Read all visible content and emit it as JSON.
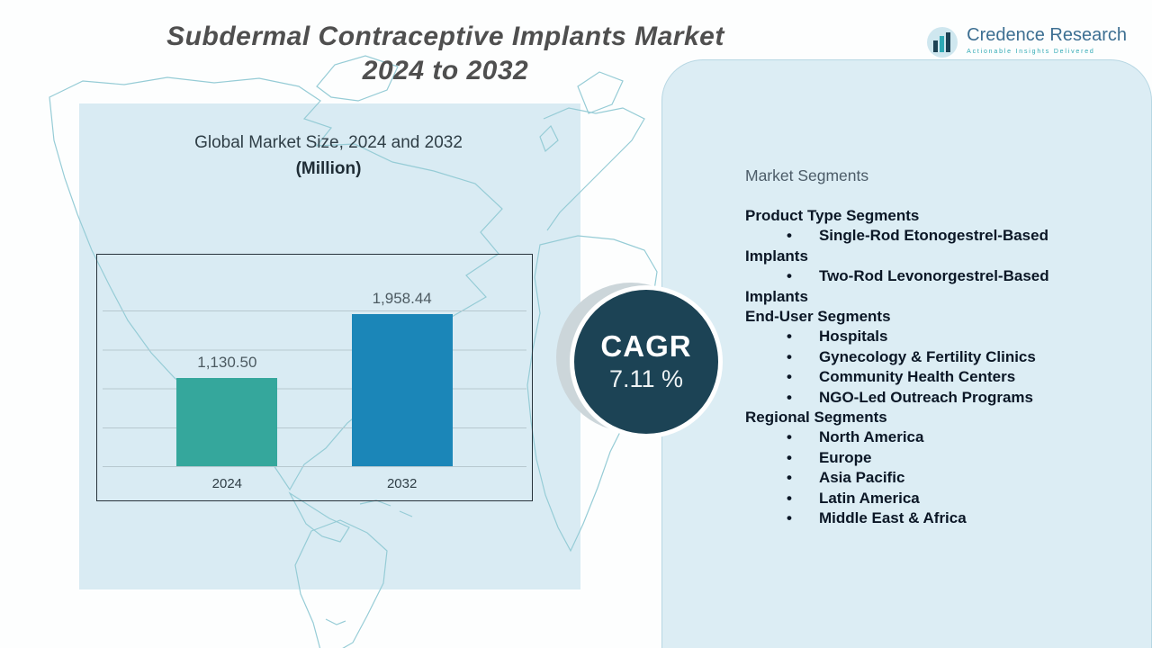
{
  "title": {
    "line1": "Subdermal Contraceptive Implants Market",
    "line2": "2024 to 2032"
  },
  "logo": {
    "name": "Credence Research",
    "tagline": "Actionable Insights Delivered"
  },
  "chart_data": {
    "type": "bar",
    "title": "Global Market Size, 2024 and 2032",
    "subtitle": "(Million)",
    "categories": [
      "2024",
      "2032"
    ],
    "values": [
      1130.5,
      1958.44
    ],
    "value_labels": [
      "1,130.50",
      "1,958.44"
    ],
    "bar_colors": [
      "#35a79c",
      "#1b86b8"
    ],
    "xlabel": "",
    "ylabel": "",
    "ylim": [
      0,
      2500
    ],
    "grid": true,
    "legend": false
  },
  "cagr": {
    "label": "CAGR",
    "value": "7.11 %"
  },
  "segments_panel": {
    "heading": "Market Segments",
    "groups": [
      {
        "title": "Product Type Segments",
        "items": [
          "Single-Rod Etonogestrel-Based Implants",
          "Two-Rod Levonorgestrel-Based Implants"
        ]
      },
      {
        "title": "End-User Segments",
        "items": [
          "Hospitals",
          "Gynecology & Fertility Clinics",
          "Community Health Centers",
          "NGO-Led Outreach Programs"
        ]
      },
      {
        "title": "Regional Segments",
        "items": [
          "North America",
          "Europe",
          "Asia Pacific",
          "Latin America",
          "Middle East & Africa"
        ]
      }
    ]
  },
  "colors": {
    "accent_teal": "#35a79c",
    "accent_blue": "#1b86b8",
    "cagr_circle": "#1c4355",
    "panel_bg": "#dcedf4",
    "map_stroke": "#96ccd6"
  }
}
